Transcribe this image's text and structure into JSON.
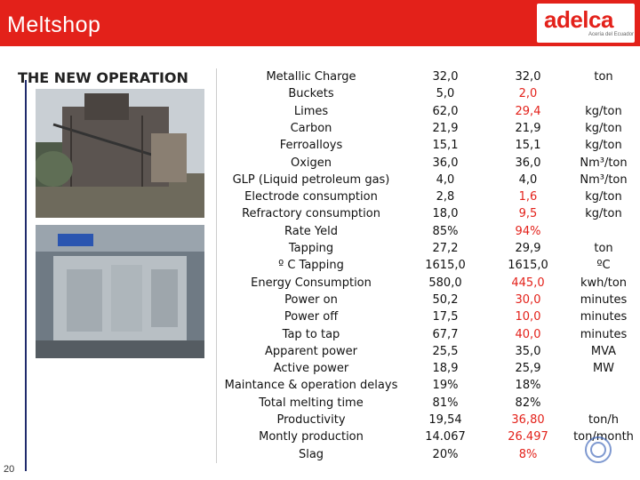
{
  "header": {
    "title": "Meltshop"
  },
  "logo": {
    "name": "adelca",
    "tagline": "Acería del Ecuador"
  },
  "subtitle": "THE NEW OPERATION",
  "page_number": "20",
  "table": {
    "rows": [
      {
        "label": "Metallic Charge",
        "v1": "32,0",
        "v2": "32,0",
        "v2_red": false,
        "unit": "ton"
      },
      {
        "label": "Buckets",
        "v1": "5,0",
        "v2": "2,0",
        "v2_red": true,
        "unit": ""
      },
      {
        "label": "Limes",
        "v1": "62,0",
        "v2": "29,4",
        "v2_red": true,
        "unit": "kg/ton"
      },
      {
        "label": "Carbon",
        "v1": "21,9",
        "v2": "21,9",
        "v2_red": false,
        "unit": "kg/ton"
      },
      {
        "label": "Ferroalloys",
        "v1": "15,1",
        "v2": "15,1",
        "v2_red": false,
        "unit": "kg/ton"
      },
      {
        "label": "Oxigen",
        "v1": "36,0",
        "v2": "36,0",
        "v2_red": false,
        "unit": "Nm³/ton"
      },
      {
        "label": "GLP (Liquid petroleum gas)",
        "v1": "4,0",
        "v2": "4,0",
        "v2_red": false,
        "unit": "Nm³/ton"
      },
      {
        "label": "Electrode consumption",
        "v1": "2,8",
        "v2": "1,6",
        "v2_red": true,
        "unit": "kg/ton"
      },
      {
        "label": "Refractory consumption",
        "v1": "18,0",
        "v2": "9,5",
        "v2_red": true,
        "unit": "kg/ton"
      },
      {
        "label": "Rate Yeld",
        "v1": "85%",
        "v2": "94%",
        "v2_red": true,
        "unit": ""
      },
      {
        "label": "Tapping",
        "v1": "27,2",
        "v2": "29,9",
        "v2_red": false,
        "unit": "ton"
      },
      {
        "label": "º C Tapping",
        "v1": "1615,0",
        "v2": "1615,0",
        "v2_red": false,
        "unit": "ºC"
      },
      {
        "label": "Energy Consumption",
        "v1": "580,0",
        "v2": "445,0",
        "v2_red": true,
        "unit": "kwh/ton"
      },
      {
        "label": "Power on",
        "v1": "50,2",
        "v2": "30,0",
        "v2_red": true,
        "unit": "minutes"
      },
      {
        "label": "Power off",
        "v1": "17,5",
        "v2": "10,0",
        "v2_red": true,
        "unit": "minutes"
      },
      {
        "label": "Tap to tap",
        "v1": "67,7",
        "v2": "40,0",
        "v2_red": true,
        "unit": "minutes"
      },
      {
        "label": "Apparent power",
        "v1": "25,5",
        "v2": "35,0",
        "v2_red": false,
        "unit": "MVA"
      },
      {
        "label": "Active power",
        "v1": "18,9",
        "v2": "25,9",
        "v2_red": false,
        "unit": "MW"
      },
      {
        "label": "Maintance & operation delays",
        "v1": "19%",
        "v2": "18%",
        "v2_red": false,
        "unit": ""
      },
      {
        "label": "Total melting time",
        "v1": "81%",
        "v2": "82%",
        "v2_red": false,
        "unit": ""
      },
      {
        "label": "Productivity",
        "v1": "19,54",
        "v2": "36,80",
        "v2_red": true,
        "unit": "ton/h"
      },
      {
        "label": "Montly production",
        "v1": "14.067",
        "v2": "26.497",
        "v2_red": true,
        "unit": "ton/month"
      },
      {
        "label": "Slag",
        "v1": "20%",
        "v2": "8%",
        "v2_red": true,
        "unit": ""
      }
    ]
  }
}
